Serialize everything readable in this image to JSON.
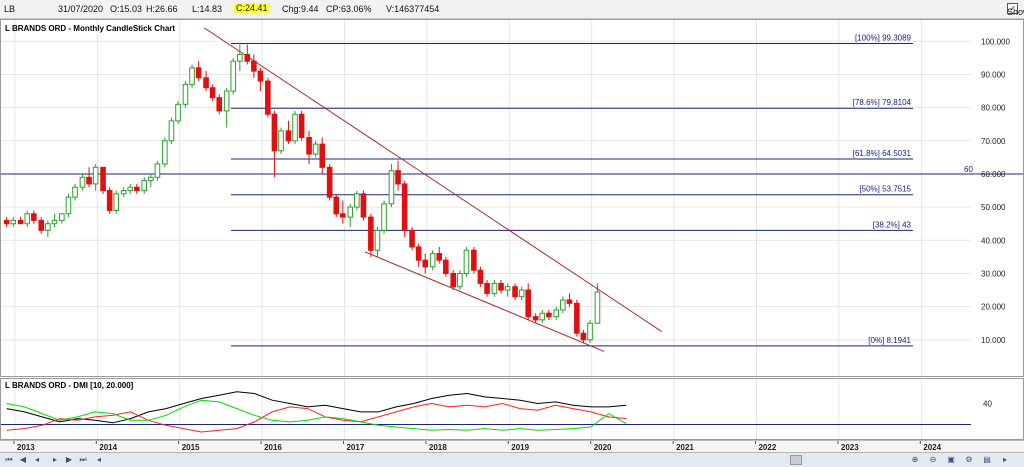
{
  "topbar": {
    "symbol": "LB",
    "date": "31/07/2020",
    "open": "O:15.03",
    "high": "H:26.66",
    "low": "L:14.83",
    "close": "C:24.41",
    "change": "Chg:9.44",
    "change_pct": "CP:63.06%",
    "volume": "V:146377454",
    "show_last_label": "Show Last",
    "show_last_checked": true
  },
  "chart_data": [
    {
      "type": "candlestick",
      "title": "L BRANDS ORD - Monthly CandleStick Chart",
      "y_ticks": [
        "100.000",
        "90.000",
        "80.000",
        "70.000",
        "60.000",
        "50.000",
        "40.000",
        "30.000",
        "20.000",
        "10.000"
      ],
      "ylim": [
        0,
        104
      ],
      "x_labels": [
        "2013",
        "2014",
        "2015",
        "2016",
        "2017",
        "2018",
        "2019",
        "2020",
        "2021",
        "2022",
        "2023",
        "2024"
      ],
      "fib_levels": [
        {
          "label": "[100%] 99.3089",
          "value": 99.3089
        },
        {
          "label": "[78.6%] 79.8104",
          "value": 79.8104
        },
        {
          "label": "[61.8%] 64.5031",
          "value": 64.5031
        },
        {
          "label": "[50%] 53.7515",
          "value": 53.7515
        },
        {
          "label": "[38.2%] 43",
          "value": 43
        },
        {
          "label": "[0%] 8.1941",
          "value": 8.1941
        }
      ],
      "reference_line": {
        "label": "60",
        "value": 60
      },
      "colors": {
        "up": "#2e9e2e",
        "down": "#e01010",
        "fib": "#1a237e",
        "trend": "#a52a2a"
      },
      "candles": [
        [
          2012.9,
          46,
          47,
          44,
          45
        ],
        [
          2012.98,
          45,
          47,
          44,
          46
        ],
        [
          2013.07,
          46,
          47,
          45,
          45
        ],
        [
          2013.15,
          45,
          49,
          44,
          48
        ],
        [
          2013.23,
          48,
          49,
          45,
          46
        ],
        [
          2013.32,
          46,
          47,
          42,
          43
        ],
        [
          2013.4,
          43,
          46,
          41,
          45
        ],
        [
          2013.48,
          45,
          48,
          44,
          46
        ],
        [
          2013.57,
          46,
          48,
          45,
          48
        ],
        [
          2013.65,
          48,
          54,
          47,
          53
        ],
        [
          2013.73,
          53,
          57,
          52,
          56
        ],
        [
          2013.82,
          56,
          60,
          55,
          59
        ],
        [
          2013.9,
          59,
          62,
          56,
          57
        ],
        [
          2013.98,
          57,
          63,
          55,
          62
        ],
        [
          2014.07,
          62,
          62,
          54,
          55
        ],
        [
          2014.15,
          55,
          56,
          48,
          49
        ],
        [
          2014.23,
          49,
          55,
          48,
          54
        ],
        [
          2014.32,
          54,
          56,
          53,
          55
        ],
        [
          2014.4,
          55,
          57,
          54,
          56
        ],
        [
          2014.48,
          56,
          57,
          54,
          55
        ],
        [
          2014.57,
          55,
          59,
          54,
          58
        ],
        [
          2014.65,
          58,
          60,
          56,
          59
        ],
        [
          2014.73,
          59,
          64,
          58,
          63
        ],
        [
          2014.82,
          63,
          71,
          62,
          70
        ],
        [
          2014.9,
          70,
          77,
          69,
          76
        ],
        [
          2014.98,
          76,
          82,
          75,
          81
        ],
        [
          2015.07,
          81,
          88,
          80,
          87
        ],
        [
          2015.15,
          87,
          93,
          86,
          92
        ],
        [
          2015.23,
          92,
          94,
          88,
          89
        ],
        [
          2015.32,
          89,
          91,
          85,
          86
        ],
        [
          2015.4,
          86,
          87,
          82,
          83
        ],
        [
          2015.48,
          83,
          84,
          78,
          79
        ],
        [
          2015.57,
          79,
          86,
          74,
          85
        ],
        [
          2015.65,
          85,
          95,
          84,
          94
        ],
        [
          2015.73,
          94,
          99,
          91,
          96
        ],
        [
          2015.82,
          96,
          99,
          93,
          94
        ],
        [
          2015.9,
          94,
          96,
          89,
          91
        ],
        [
          2015.98,
          91,
          92,
          85,
          88
        ],
        [
          2016.07,
          88,
          89,
          77,
          78
        ],
        [
          2016.15,
          78,
          79,
          59,
          67
        ],
        [
          2016.23,
          67,
          74,
          66,
          73
        ],
        [
          2016.32,
          73,
          76,
          69,
          70
        ],
        [
          2016.4,
          70,
          79,
          69,
          78
        ],
        [
          2016.48,
          78,
          79,
          70,
          71
        ],
        [
          2016.57,
          71,
          73,
          63,
          66
        ],
        [
          2016.65,
          66,
          70,
          65,
          69
        ],
        [
          2016.73,
          69,
          71,
          60,
          62
        ],
        [
          2016.82,
          62,
          63,
          52,
          53
        ],
        [
          2016.9,
          53,
          54,
          47,
          48
        ],
        [
          2016.98,
          48,
          52,
          45,
          47
        ],
        [
          2017.07,
          47,
          51,
          44,
          50
        ],
        [
          2017.15,
          50,
          55,
          49,
          54
        ],
        [
          2017.23,
          54,
          55,
          46,
          47
        ],
        [
          2017.32,
          47,
          48,
          35,
          37
        ],
        [
          2017.4,
          37,
          44,
          35,
          43
        ],
        [
          2017.48,
          43,
          52,
          42,
          51
        ],
        [
          2017.57,
          51,
          63,
          50,
          61
        ],
        [
          2017.65,
          61,
          64,
          55,
          57
        ],
        [
          2017.73,
          57,
          58,
          41,
          43
        ],
        [
          2017.82,
          43,
          44,
          37,
          38
        ],
        [
          2017.9,
          38,
          39,
          32,
          34
        ],
        [
          2017.98,
          34,
          36,
          30,
          32
        ],
        [
          2018.07,
          32,
          37,
          31,
          36
        ],
        [
          2018.15,
          36,
          38,
          33,
          34
        ],
        [
          2018.23,
          34,
          35,
          29,
          30
        ],
        [
          2018.32,
          30,
          31,
          25,
          26
        ],
        [
          2018.4,
          26,
          31,
          25,
          30
        ],
        [
          2018.48,
          30,
          38,
          29,
          37
        ],
        [
          2018.57,
          37,
          38,
          30,
          31
        ],
        [
          2018.65,
          31,
          32,
          26,
          27
        ],
        [
          2018.73,
          27,
          28,
          23,
          24
        ],
        [
          2018.82,
          24,
          28,
          23,
          27
        ],
        [
          2018.9,
          27,
          28,
          24,
          25
        ],
        [
          2018.98,
          25,
          27,
          23,
          26
        ],
        [
          2019.07,
          26,
          27,
          22,
          23
        ],
        [
          2019.15,
          23,
          26,
          22,
          25
        ],
        [
          2019.23,
          25,
          27,
          16,
          17
        ],
        [
          2019.32,
          17,
          18,
          15,
          16
        ],
        [
          2019.4,
          16,
          19,
          15,
          18
        ],
        [
          2019.48,
          18,
          19,
          16,
          17
        ],
        [
          2019.57,
          17,
          20,
          16,
          19
        ],
        [
          2019.65,
          19,
          23,
          18,
          22
        ],
        [
          2019.73,
          22,
          24,
          20,
          21
        ],
        [
          2019.82,
          21,
          22,
          11,
          12
        ],
        [
          2019.9,
          12,
          13,
          9,
          10
        ],
        [
          2019.98,
          10,
          16,
          9,
          15
        ],
        [
          2020.07,
          15,
          27,
          15,
          24.41
        ]
      ],
      "trendlines": [
        {
          "from": [
            2015.3,
            104
          ],
          "to": [
            2020.85,
            12.5
          ]
        },
        {
          "from": [
            2017.25,
            36.5
          ],
          "to": [
            2020.15,
            6.5
          ]
        }
      ]
    },
    {
      "type": "line",
      "title": "L BRANDS ORD - DMI [10, 20.000]",
      "y_ticks": [
        "40"
      ],
      "ylim": [
        0,
        55
      ],
      "reference_line": {
        "value": 40
      },
      "series": [
        {
          "color": "#000000",
          "values": [
            34,
            30,
            24,
            18,
            22,
            20,
            17,
            22,
            30,
            34,
            40,
            46,
            50,
            54,
            52,
            44,
            40,
            36,
            38,
            34,
            30,
            30,
            36,
            40,
            46,
            50,
            52,
            48,
            46,
            44,
            40,
            42,
            38,
            36,
            36,
            38
          ]
        },
        {
          "color": "#ff2020",
          "values": [
            8,
            10,
            14,
            22,
            20,
            24,
            26,
            30,
            20,
            14,
            10,
            6,
            8,
            10,
            18,
            30,
            36,
            34,
            24,
            20,
            18,
            24,
            30,
            36,
            40,
            36,
            38,
            36,
            40,
            34,
            32,
            38,
            34,
            30,
            24,
            22
          ]
        },
        {
          "color": "#00dd00",
          "values": [
            40,
            36,
            28,
            20,
            24,
            30,
            28,
            20,
            20,
            26,
            36,
            44,
            42,
            34,
            26,
            20,
            18,
            20,
            24,
            22,
            18,
            14,
            12,
            10,
            8,
            9,
            8,
            10,
            8,
            10,
            8,
            9,
            10,
            12,
            28,
            16
          ]
        }
      ]
    }
  ]
}
